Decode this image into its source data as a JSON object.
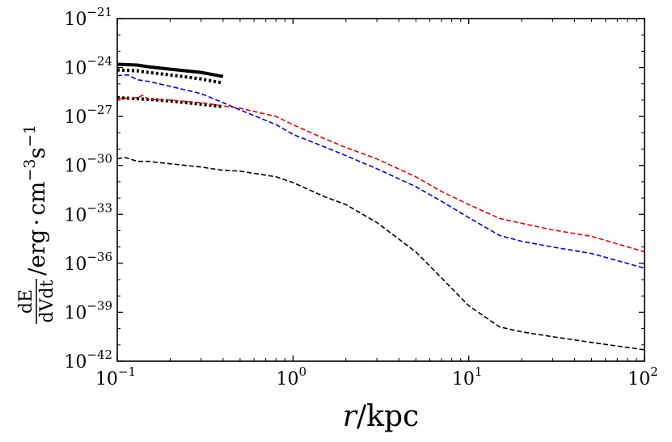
{
  "chart_data": {
    "type": "line",
    "xscale": "log",
    "yscale": "log",
    "xlim": [
      0.1,
      100
    ],
    "ylim_log10": [
      -42,
      -21
    ],
    "x_ticks": [
      {
        "value": 0.1,
        "base": "10",
        "exp": "−1"
      },
      {
        "value": 1,
        "base": "10",
        "exp": "0"
      },
      {
        "value": 10,
        "base": "10",
        "exp": "1"
      },
      {
        "value": 100,
        "base": "10",
        "exp": "2"
      }
    ],
    "y_ticks": [
      {
        "log10": -21,
        "base": "10",
        "exp": "−21"
      },
      {
        "log10": -24,
        "base": "10",
        "exp": "−24"
      },
      {
        "log10": -27,
        "base": "10",
        "exp": "−27"
      },
      {
        "log10": -30,
        "base": "10",
        "exp": "−30"
      },
      {
        "log10": -33,
        "base": "10",
        "exp": "−33"
      },
      {
        "log10": -36,
        "base": "10",
        "exp": "−36"
      },
      {
        "log10": -39,
        "base": "10",
        "exp": "−39"
      },
      {
        "log10": -42,
        "base": "10",
        "exp": "−42"
      }
    ],
    "xlabel": {
      "var": "r",
      "slash": "/",
      "unit": "kpc"
    },
    "ylabel": {
      "frac_num": "dE",
      "frac_den": "dVdt",
      "slash": "/",
      "unit_erg": "erg",
      "dot": "·",
      "unit_cm": "cm",
      "cm_exp": "−3",
      "unit_s": "s",
      "s_exp": "−1"
    },
    "series": [
      {
        "name": "black-solid",
        "color": "#000000",
        "style": "solid",
        "width": 4,
        "points": [
          [
            0.1,
            -23.8
          ],
          [
            0.13,
            -23.85
          ],
          [
            0.15,
            -23.95
          ],
          [
            0.2,
            -24.1
          ],
          [
            0.3,
            -24.3
          ],
          [
            0.4,
            -24.55
          ]
        ]
      },
      {
        "name": "black-dotted-upper",
        "color": "#000000",
        "style": "dotted",
        "width": 4,
        "points": [
          [
            0.1,
            -24.15
          ],
          [
            0.13,
            -24.2
          ],
          [
            0.15,
            -24.3
          ],
          [
            0.2,
            -24.45
          ],
          [
            0.3,
            -24.7
          ],
          [
            0.4,
            -24.95
          ]
        ]
      },
      {
        "name": "black-dotted-lower",
        "color": "#000000",
        "style": "dotted",
        "width": 4,
        "points": [
          [
            0.1,
            -25.85
          ],
          [
            0.15,
            -25.95
          ],
          [
            0.2,
            -26.05
          ],
          [
            0.3,
            -26.25
          ],
          [
            0.4,
            -26.4
          ]
        ]
      },
      {
        "name": "blue-dashed",
        "color": "#0000ee",
        "style": "dashed",
        "width": 1.6,
        "points": [
          [
            0.1,
            -24.5
          ],
          [
            0.115,
            -24.45
          ],
          [
            0.13,
            -24.75
          ],
          [
            0.15,
            -24.85
          ],
          [
            0.2,
            -25.15
          ],
          [
            0.3,
            -25.6
          ],
          [
            0.4,
            -26.15
          ],
          [
            0.5,
            -26.6
          ],
          [
            0.8,
            -27.5
          ],
          [
            1.0,
            -28.1
          ],
          [
            1.5,
            -28.85
          ],
          [
            2.0,
            -29.4
          ],
          [
            3.0,
            -30.2
          ],
          [
            5.0,
            -31.3
          ],
          [
            7.0,
            -32.2
          ],
          [
            10,
            -33.2
          ],
          [
            15,
            -34.3
          ],
          [
            20,
            -34.65
          ],
          [
            30,
            -35.0
          ],
          [
            50,
            -35.4
          ],
          [
            100,
            -36.3
          ]
        ]
      },
      {
        "name": "red-dashed",
        "color": "#ee0000",
        "style": "dashed",
        "width": 1.6,
        "points": [
          [
            0.1,
            -25.9
          ],
          [
            0.13,
            -25.85
          ],
          [
            0.14,
            -25.7
          ],
          [
            0.15,
            -25.95
          ],
          [
            0.2,
            -26.0
          ],
          [
            0.3,
            -26.15
          ],
          [
            0.4,
            -26.35
          ],
          [
            0.5,
            -26.5
          ],
          [
            0.8,
            -27.0
          ],
          [
            1.0,
            -27.5
          ],
          [
            1.5,
            -28.35
          ],
          [
            2.0,
            -28.9
          ],
          [
            3.0,
            -29.6
          ],
          [
            5.0,
            -30.7
          ],
          [
            7.0,
            -31.6
          ],
          [
            10,
            -32.4
          ],
          [
            15,
            -33.25
          ],
          [
            20,
            -33.55
          ],
          [
            30,
            -33.95
          ],
          [
            50,
            -34.35
          ],
          [
            100,
            -35.3
          ]
        ]
      },
      {
        "name": "black-dashed",
        "color": "#000000",
        "style": "dashed",
        "width": 1.6,
        "points": [
          [
            0.1,
            -29.6
          ],
          [
            0.11,
            -29.5
          ],
          [
            0.13,
            -29.75
          ],
          [
            0.15,
            -29.75
          ],
          [
            0.2,
            -29.9
          ],
          [
            0.3,
            -30.1
          ],
          [
            0.4,
            -30.3
          ],
          [
            0.5,
            -30.35
          ],
          [
            0.8,
            -30.7
          ],
          [
            1.0,
            -31.05
          ],
          [
            1.5,
            -31.9
          ],
          [
            2.0,
            -32.4
          ],
          [
            3.0,
            -33.5
          ],
          [
            5.0,
            -35.3
          ],
          [
            7.0,
            -36.9
          ],
          [
            10,
            -38.6
          ],
          [
            15,
            -39.9
          ],
          [
            20,
            -40.2
          ],
          [
            30,
            -40.5
          ],
          [
            50,
            -40.85
          ],
          [
            100,
            -41.3
          ]
        ]
      }
    ]
  }
}
